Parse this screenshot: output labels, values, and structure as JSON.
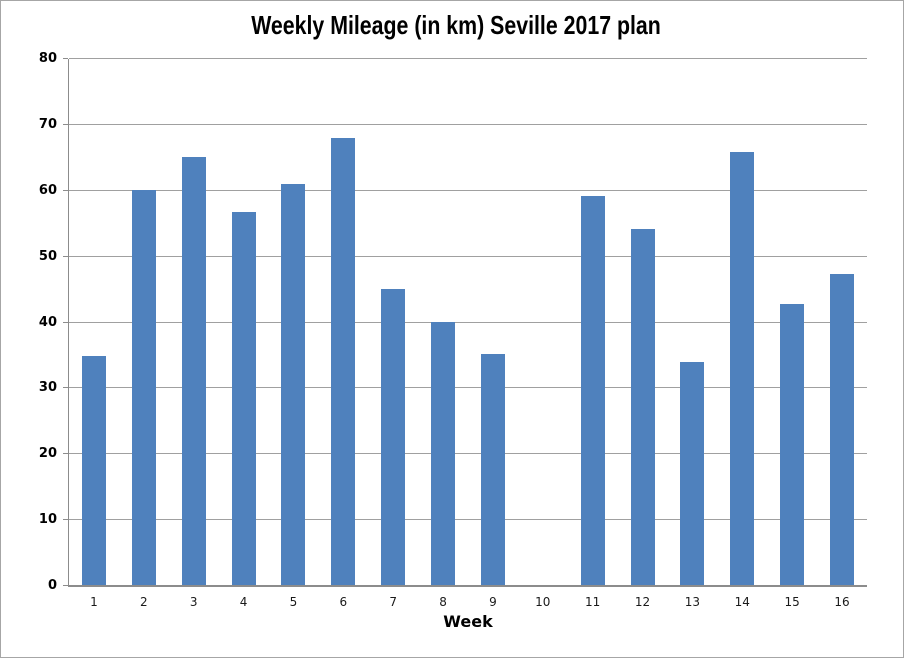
{
  "chart_data": {
    "type": "bar",
    "title": "Weekly Mileage (in km) Seville 2017 plan",
    "xlabel": "Week",
    "ylabel": "",
    "categories": [
      "1",
      "2",
      "3",
      "4",
      "5",
      "6",
      "7",
      "8",
      "9",
      "10",
      "11",
      "12",
      "13",
      "14",
      "15",
      "16"
    ],
    "values": [
      34.8,
      60,
      65,
      56.7,
      60.8,
      67.8,
      45,
      40,
      35.1,
      0,
      59,
      54,
      33.8,
      65.7,
      42.7,
      47.2
    ],
    "ylim": [
      0,
      80
    ],
    "yticks": [
      "0",
      "10",
      "20",
      "30",
      "40",
      "50",
      "60",
      "70",
      "80"
    ],
    "ytick_interval": 10,
    "grid": true,
    "legend": "none",
    "colors": {
      "bar": "#4f81bd",
      "gridline": "#a0a0a0",
      "axis": "#8c8c8c",
      "frame_border": "#a6a6a6",
      "title_text": "#000000",
      "tick_text": "#1a1a1a"
    }
  }
}
